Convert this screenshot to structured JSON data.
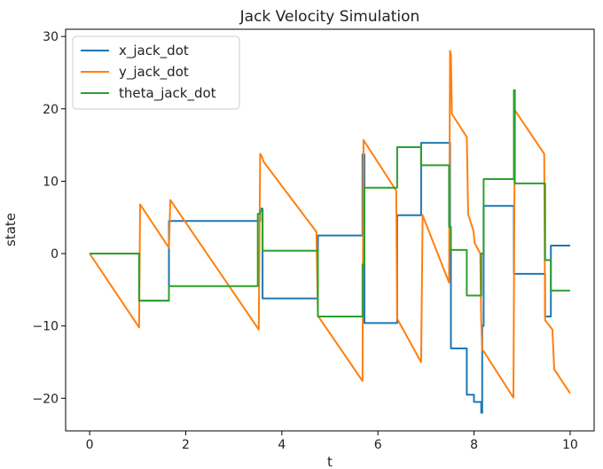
{
  "chart_data": {
    "type": "line",
    "title": "Jack Velocity Simulation",
    "xlabel": "t",
    "ylabel": "state",
    "xlim": [
      -0.5,
      10.5
    ],
    "ylim": [
      -24.5,
      31
    ],
    "xticks": [
      0,
      2,
      4,
      6,
      8,
      10
    ],
    "yticks": [
      -20,
      -10,
      0,
      10,
      20,
      30
    ],
    "xtick_labels": [
      "0",
      "2",
      "4",
      "6",
      "8",
      "10"
    ],
    "ytick_labels": [
      "−20",
      "−10",
      "0",
      "10",
      "20",
      "30"
    ],
    "grid": false,
    "legend_position": "top-left",
    "series": [
      {
        "name": "x_jack_dot",
        "color": "#1f77b4",
        "x": [
          0,
          1.03,
          1.03,
          1.65,
          1.65,
          3.55,
          3.55,
          3.6,
          3.6,
          4.75,
          4.75,
          5.68,
          5.68,
          5.72,
          5.72,
          6.4,
          6.4,
          6.9,
          6.9,
          7.5,
          7.5,
          7.52,
          7.52,
          7.85,
          7.85,
          8.0,
          8.0,
          8.15,
          8.15,
          8.17,
          8.17,
          8.2,
          8.2,
          8.83,
          8.83,
          9.48,
          9.48,
          9.6,
          9.6,
          9.65,
          9.65,
          10.0
        ],
        "y": [
          0,
          0,
          -6.5,
          -6.5,
          4.5,
          4.5,
          6.2,
          6.2,
          -6.2,
          -6.2,
          2.5,
          2.5,
          13.7,
          13.7,
          -9.6,
          -9.6,
          5.3,
          5.3,
          15.3,
          15.3,
          3.5,
          3.5,
          -13.1,
          -13.1,
          -19.5,
          -19.5,
          -20.5,
          -20.5,
          -22.0,
          -22.0,
          -10.0,
          -10.0,
          6.6,
          6.6,
          -2.8,
          -2.8,
          -8.7,
          -8.7,
          1.1,
          1.1,
          1.1,
          1.1
        ]
      },
      {
        "name": "y_jack_dot",
        "color": "#ff7f0e",
        "x": [
          0,
          1.03,
          1.05,
          1.65,
          1.68,
          3.52,
          3.55,
          3.6,
          3.62,
          4.72,
          4.75,
          5.68,
          5.7,
          6.38,
          6.4,
          6.9,
          6.93,
          7.48,
          7.5,
          7.52,
          7.54,
          7.85,
          7.88,
          7.99,
          8.01,
          8.13,
          8.15,
          8.17,
          8.2,
          8.82,
          8.85,
          9.46,
          9.48,
          9.63,
          9.67,
          10.0
        ],
        "y": [
          0,
          -10.2,
          6.8,
          0.8,
          7.4,
          -10.5,
          13.8,
          13.2,
          12.7,
          3.0,
          -8.6,
          -17.6,
          15.7,
          8.7,
          -9.0,
          -15.0,
          5.3,
          -4.0,
          28.0,
          27.5,
          19.3,
          16.1,
          5.4,
          3.1,
          1.5,
          0.0,
          -9.5,
          -13.3,
          -13.5,
          -19.9,
          19.8,
          13.8,
          -9.2,
          -10.5,
          -16.0,
          -19.3
        ]
      },
      {
        "name": "theta_jack_dot",
        "color": "#2ca02c",
        "x": [
          0,
          1.03,
          1.03,
          1.65,
          1.65,
          3.5,
          3.5,
          3.55,
          3.55,
          3.6,
          3.6,
          4.75,
          4.75,
          5.68,
          5.68,
          5.72,
          5.72,
          6.4,
          6.4,
          6.9,
          6.9,
          7.48,
          7.48,
          7.52,
          7.52,
          7.85,
          7.85,
          8.15,
          8.15,
          8.2,
          8.2,
          8.83,
          8.83,
          8.85,
          8.85,
          9.48,
          9.48,
          9.6,
          9.6,
          10.0
        ],
        "y": [
          0,
          0,
          -6.5,
          -6.5,
          -4.5,
          -4.5,
          5.5,
          5.5,
          5.9,
          5.9,
          0.4,
          0.4,
          -8.7,
          -8.7,
          -1.5,
          -1.5,
          9.1,
          9.1,
          14.7,
          14.7,
          12.2,
          12.2,
          3.7,
          3.7,
          0.5,
          0.5,
          -5.8,
          -5.8,
          0.0,
          0.0,
          10.3,
          10.3,
          22.6,
          22.6,
          9.7,
          9.7,
          -0.9,
          -0.9,
          -5.1,
          -5.1
        ]
      }
    ]
  }
}
